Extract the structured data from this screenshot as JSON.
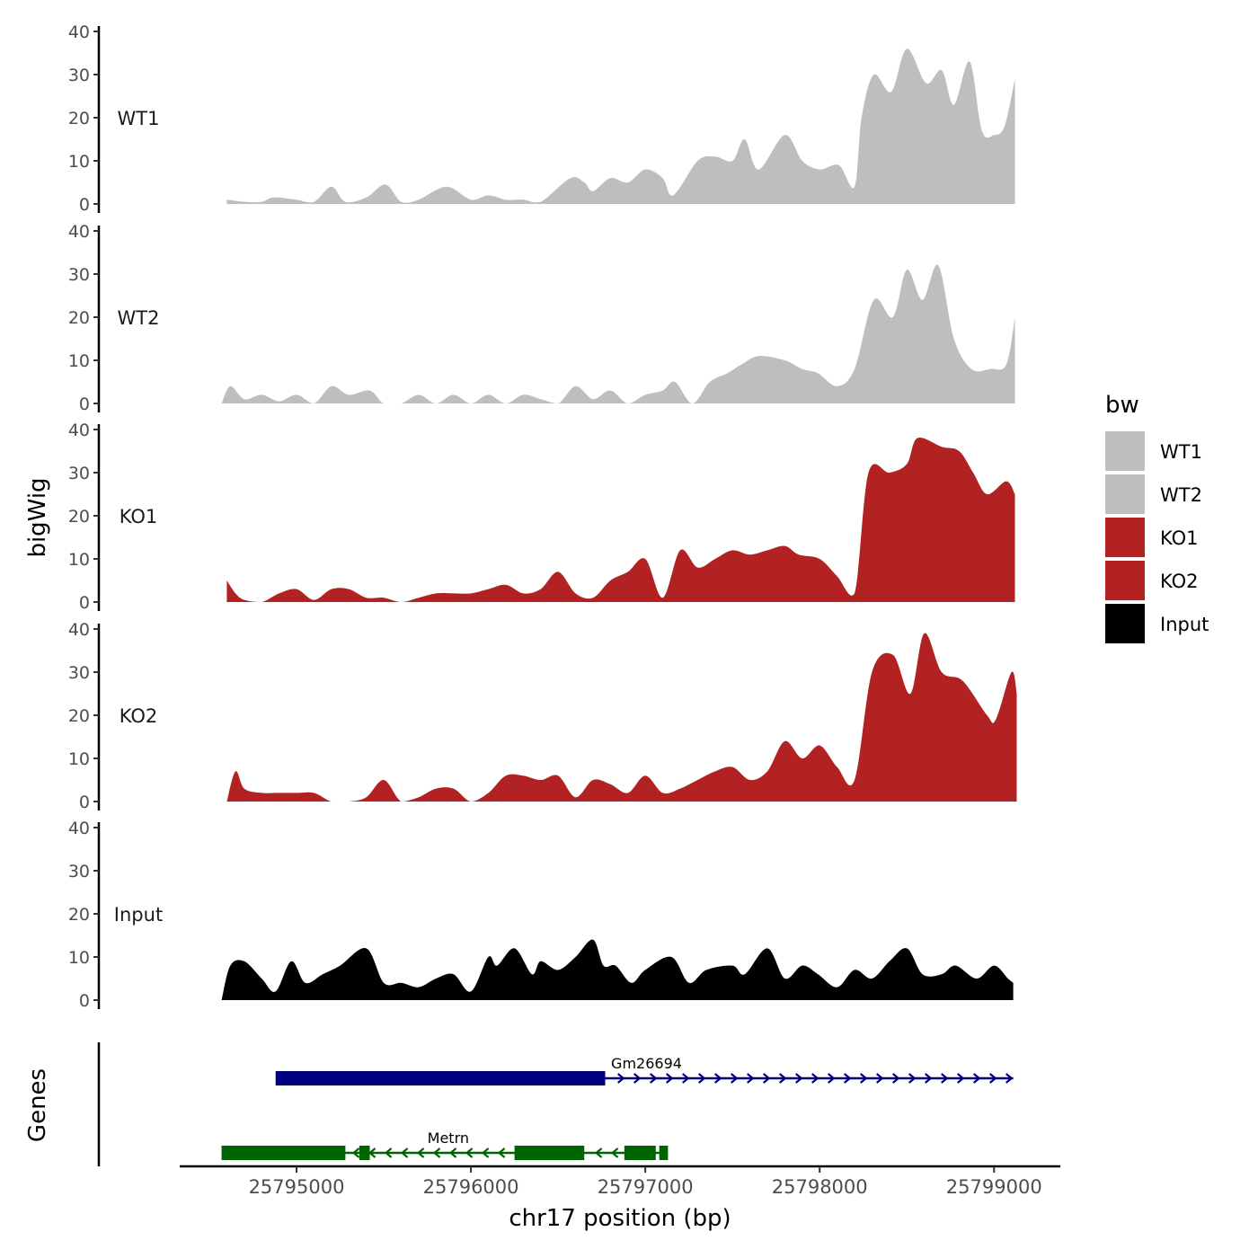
{
  "chart_data": {
    "type": "area",
    "xlabel": "chr17 position (bp)",
    "ylabel": "bigWig",
    "genes_label": "Genes",
    "xlim": [
      25794330,
      25799380
    ],
    "x_ticks": [
      25795000,
      25796000,
      25797000,
      25798000,
      25799000
    ],
    "x_tick_labels": [
      "25795000",
      "25796000",
      "25797000",
      "25798000",
      "25799000"
    ],
    "ylim": [
      0,
      40
    ],
    "y_ticks": [
      0,
      10,
      20,
      30,
      40
    ],
    "y_tick_labels": [
      "0",
      "10",
      "20",
      "30",
      "40"
    ],
    "legend": {
      "title": "bw",
      "position": "right",
      "entries": [
        {
          "label": "WT1",
          "color": "#bebebe"
        },
        {
          "label": "WT2",
          "color": "#bebebe"
        },
        {
          "label": "KO1",
          "color": "#b22222"
        },
        {
          "label": "KO2",
          "color": "#b22222"
        },
        {
          "label": "Input",
          "color": "#000000"
        }
      ]
    },
    "series": [
      {
        "name": "WT1",
        "color": "#bebebe",
        "x": [
          25794600,
          25794700,
          25794800,
          25794870,
          25795000,
          25795100,
          25795200,
          25795280,
          25795400,
          25795510,
          25795600,
          25795700,
          25795860,
          25796000,
          25796100,
          25796200,
          25796300,
          25796400,
          25796570,
          25796650,
          25796700,
          25796800,
          25796900,
          25797000,
          25797100,
          25797160,
          25797300,
          25797400,
          25797500,
          25797570,
          25797650,
          25797800,
          25797900,
          25798000,
          25798110,
          25798200,
          25798240,
          25798310,
          25798410,
          25798500,
          25798610,
          25798700,
          25798770,
          25798860,
          25798930,
          25799000,
          25799060,
          25799120
        ],
        "y": [
          1,
          0.5,
          0.5,
          1.5,
          1,
          0.5,
          4,
          0.5,
          1.5,
          4.5,
          0.5,
          1,
          4,
          1,
          2,
          1,
          1,
          0.5,
          6,
          5,
          3,
          6,
          5,
          8,
          6,
          2,
          10,
          11,
          10,
          15,
          8,
          16,
          10,
          8,
          9,
          4,
          20,
          30,
          26,
          36,
          28,
          31,
          23,
          33,
          17,
          16,
          18,
          29
        ]
      },
      {
        "name": "WT2",
        "color": "#bebebe",
        "x": [
          25794570,
          25794620,
          25794700,
          25794800,
          25794900,
          25795000,
          25795100,
          25795200,
          25795300,
          25795420,
          25795500,
          25795600,
          25795700,
          25795800,
          25795900,
          25796000,
          25796100,
          25796200,
          25796300,
          25796400,
          25796500,
          25796600,
          25796700,
          25796800,
          25796900,
          25797000,
          25797100,
          25797170,
          25797270,
          25797370,
          25797470,
          25797550,
          25797650,
          25797800,
          25797900,
          25797990,
          25798100,
          25798200,
          25798310,
          25798420,
          25798500,
          25798590,
          25798680,
          25798770,
          25798870,
          25798980,
          25799070,
          25799120
        ],
        "y": [
          0,
          4,
          1,
          2,
          0.5,
          2,
          0,
          4,
          2,
          3,
          0,
          0,
          2,
          0,
          2,
          0,
          2,
          0,
          2,
          1,
          0,
          4,
          1,
          3,
          0,
          2,
          3,
          5,
          0,
          5,
          7,
          9,
          11,
          10,
          8,
          7,
          4,
          8,
          24,
          20,
          31,
          24,
          32,
          15,
          8,
          8,
          9,
          20
        ]
      },
      {
        "name": "KO1",
        "color": "#b22222",
        "x": [
          25794600,
          25794650,
          25794700,
          25794800,
          25794900,
          25795000,
          25795100,
          25795200,
          25795300,
          25795400,
          25795500,
          25795600,
          25795700,
          25795800,
          25795900,
          25796000,
          25796100,
          25796200,
          25796300,
          25796400,
          25796500,
          25796600,
          25796700,
          25796800,
          25796900,
          25797000,
          25797100,
          25797200,
          25797300,
          25797400,
          25797500,
          25797600,
          25797700,
          25797800,
          25797880,
          25798000,
          25798100,
          25798200,
          25798280,
          25798400,
          25798500,
          25798560,
          25798700,
          25798800,
          25798880,
          25798960,
          25799070,
          25799120
        ],
        "y": [
          5,
          2,
          0.5,
          0,
          2,
          3,
          0.5,
          3,
          3,
          1,
          1,
          0,
          1,
          2,
          2,
          2,
          3,
          4,
          2,
          3,
          7,
          2,
          1,
          5,
          7,
          10,
          1,
          12,
          8,
          10,
          12,
          11,
          12,
          13,
          11,
          10,
          6,
          2,
          30,
          30,
          32,
          38,
          36,
          35,
          30,
          25,
          28,
          25
        ]
      },
      {
        "name": "KO2",
        "color": "#b22222",
        "x": [
          25794600,
          25794650,
          25794700,
          25794800,
          25794900,
          25795000,
          25795100,
          25795200,
          25795300,
          25795400,
          25795500,
          25795600,
          25795700,
          25795800,
          25795900,
          25796000,
          25796100,
          25796200,
          25796300,
          25796400,
          25796500,
          25796600,
          25796700,
          25796800,
          25796900,
          25797000,
          25797100,
          25797200,
          25797300,
          25797400,
          25797500,
          25797600,
          25797700,
          25797800,
          25797900,
          25798000,
          25798100,
          25798200,
          25798300,
          25798420,
          25798520,
          25798600,
          25798700,
          25798820,
          25798960,
          25799010,
          25799100,
          25799130
        ],
        "y": [
          0,
          7,
          3,
          2,
          2,
          2,
          2,
          0,
          0,
          1,
          5,
          0,
          1,
          3,
          3,
          0,
          2,
          6,
          6,
          5,
          6,
          1,
          5,
          4,
          2,
          6,
          2,
          3,
          5,
          7,
          8,
          5,
          7,
          14,
          10,
          13,
          8,
          5,
          30,
          34,
          25,
          39,
          30,
          28,
          20,
          19,
          30,
          25
        ]
      },
      {
        "name": "Input",
        "color": "#000000",
        "x": [
          25794570,
          25794620,
          25794700,
          25794800,
          25794880,
          25794970,
          25795050,
          25795150,
          25795250,
          25795400,
          25795500,
          25795600,
          25795700,
          25795800,
          25795900,
          25796000,
          25796100,
          25796150,
          25796250,
          25796350,
          25796400,
          25796500,
          25796600,
          25796700,
          25796760,
          25796830,
          25796920,
          25797000,
          25797150,
          25797250,
          25797350,
          25797500,
          25797570,
          25797700,
          25797800,
          25797900,
          25797990,
          25798100,
          25798200,
          25798300,
          25798400,
          25798500,
          25798590,
          25798700,
          25798780,
          25798900,
          25799000,
          25799080,
          25799110
        ],
        "y": [
          0,
          8,
          9,
          5,
          2,
          9,
          4,
          6,
          8,
          12,
          4,
          4,
          3,
          5,
          6,
          2,
          10,
          8,
          12,
          6,
          9,
          7,
          10,
          14,
          8,
          8,
          4,
          7,
          10,
          4,
          7,
          8,
          6,
          12,
          5,
          8,
          6,
          3,
          7,
          5,
          9,
          12,
          6,
          6,
          8,
          5,
          8,
          5,
          4
        ]
      }
    ],
    "genes": [
      {
        "name": "Gm26694",
        "color": "#000080",
        "strand": "+",
        "start": 25794880,
        "end": 25799110,
        "exons": [
          [
            25794880,
            25796770
          ]
        ]
      },
      {
        "name": "Metrn",
        "color": "#006400",
        "strand": "-",
        "start": 25794570,
        "end": 25797130,
        "exons": [
          [
            25794570,
            25795280
          ],
          [
            25795360,
            25795420
          ],
          [
            25796250,
            25796650
          ],
          [
            25796880,
            25797060
          ],
          [
            25797080,
            25797130
          ]
        ]
      }
    ]
  }
}
